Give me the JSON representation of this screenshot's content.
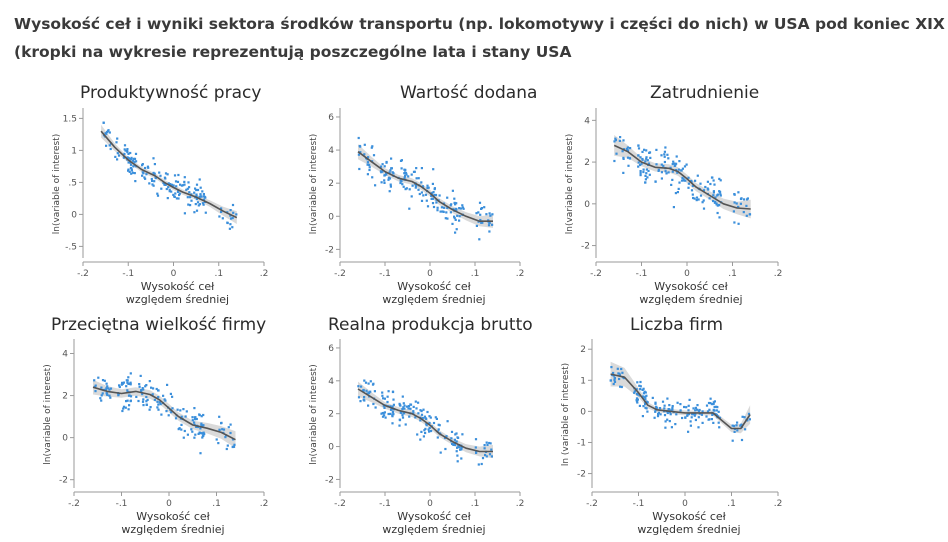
{
  "header": {
    "title_line1": "Wysokość ceł i wyniki sektora środków transportu (np. lokomotywy i części do nich) w USA pod koniec XIX w.",
    "title_line2": "(kropki na wykresie reprezentują poszczególne lata i stany USA"
  },
  "colors": {
    "points": "#3b8fdb",
    "line": "#555555",
    "band": "#d3d3d3",
    "axis": "#9a9a9a",
    "text": "#2b2b2b"
  },
  "chart_data": [
    {
      "type": "scatter",
      "title": "Produktywność pracy",
      "xlabel": "Wysokość ceł względem średniej",
      "ylabel": "ln(variable of interest)",
      "xlim": [
        -0.2,
        0.2
      ],
      "ylim": [
        -0.65,
        1.6
      ],
      "xticks": [
        -0.2,
        -0.1,
        0,
        0.1,
        0.2
      ],
      "xtick_labels": [
        "-.2",
        "-.1",
        "0",
        ".1",
        ".2"
      ],
      "yticks": [
        -0.5,
        0,
        0.5,
        1,
        1.5
      ],
      "ytick_labels": [
        "-.5",
        "0",
        ".5",
        "1",
        "1.5"
      ],
      "x_range": [
        -0.16,
        0.14
      ],
      "fit": {
        "x": [
          -0.16,
          -0.13,
          -0.1,
          -0.07,
          -0.04,
          -0.02,
          0,
          0.02,
          0.05,
          0.08,
          0.11,
          0.14
        ],
        "y": [
          1.3,
          1.05,
          0.85,
          0.7,
          0.6,
          0.5,
          0.42,
          0.35,
          0.27,
          0.17,
          0.05,
          -0.05
        ]
      },
      "band_halfwidth": [
        0.1,
        0.06,
        0.04,
        0.04,
        0.04,
        0.04,
        0.04,
        0.04,
        0.04,
        0.05,
        0.07,
        0.1
      ],
      "spread": 0.22
    },
    {
      "type": "scatter",
      "title": "Wartość dodana",
      "xlabel": "Wysokość ceł względem średniej",
      "ylabel": "ln(variable of interest)",
      "xlim": [
        -0.2,
        0.2
      ],
      "ylim": [
        -2.4,
        6.3
      ],
      "xticks": [
        -0.2,
        -0.1,
        0,
        0.1,
        0.2
      ],
      "xtick_labels": [
        "-.2",
        "-.1",
        "0",
        ".1",
        ".2"
      ],
      "yticks": [
        -2,
        0,
        2,
        4,
        6
      ],
      "ytick_labels": [
        "-2",
        "0",
        "2",
        "4",
        "6"
      ],
      "x_range": [
        -0.16,
        0.14
      ],
      "fit": {
        "x": [
          -0.16,
          -0.13,
          -0.1,
          -0.07,
          -0.04,
          -0.02,
          0,
          0.02,
          0.05,
          0.08,
          0.11,
          0.14
        ],
        "y": [
          3.9,
          3.3,
          2.7,
          2.3,
          2.1,
          1.8,
          1.4,
          0.9,
          0.4,
          0.0,
          -0.3,
          -0.3
        ]
      },
      "band_halfwidth": [
        0.45,
        0.3,
        0.2,
        0.2,
        0.2,
        0.2,
        0.2,
        0.2,
        0.2,
        0.25,
        0.3,
        0.4
      ],
      "spread": 0.9
    },
    {
      "type": "scatter",
      "title": "Zatrudnienie",
      "xlabel": "Wysokość ceł względem średniej",
      "ylabel": "ln(variable of interest)",
      "xlim": [
        -0.2,
        0.2
      ],
      "ylim": [
        -2.5,
        4.4
      ],
      "xticks": [
        -0.2,
        -0.1,
        0,
        0.1,
        0.2
      ],
      "xtick_labels": [
        "-.2",
        "-.1",
        "0",
        ".1",
        ".2"
      ],
      "yticks": [
        -2,
        0,
        2,
        4
      ],
      "ytick_labels": [
        "-2",
        "0",
        "2",
        "4"
      ],
      "x_range": [
        -0.16,
        0.14
      ],
      "fit": {
        "x": [
          -0.16,
          -0.13,
          -0.1,
          -0.07,
          -0.04,
          -0.02,
          0,
          0.02,
          0.05,
          0.08,
          0.11,
          0.14
        ],
        "y": [
          2.8,
          2.5,
          2.0,
          1.75,
          1.7,
          1.55,
          1.2,
          0.8,
          0.4,
          0.0,
          -0.2,
          -0.25
        ]
      },
      "band_halfwidth": [
        0.5,
        0.3,
        0.2,
        0.2,
        0.2,
        0.2,
        0.2,
        0.2,
        0.2,
        0.25,
        0.3,
        0.45
      ],
      "spread": 0.8
    },
    {
      "type": "scatter",
      "title": "Przeciętna wielkość firmy",
      "xlabel": "Wysokość ceł względem średniej",
      "ylabel": "ln(variable of interest)",
      "xlim": [
        -0.2,
        0.2
      ],
      "ylim": [
        -2.3,
        4.5
      ],
      "xticks": [
        -0.2,
        -0.1,
        0,
        0.1,
        0.2
      ],
      "xtick_labels": [
        "-.2",
        "-.1",
        "0",
        ".1",
        ".2"
      ],
      "yticks": [
        -2,
        0,
        2,
        4
      ],
      "ytick_labels": [
        "-2",
        "0",
        "2",
        "4"
      ],
      "x_range": [
        -0.16,
        0.14
      ],
      "fit": {
        "x": [
          -0.16,
          -0.13,
          -0.1,
          -0.07,
          -0.04,
          -0.02,
          0,
          0.02,
          0.05,
          0.08,
          0.11,
          0.14
        ],
        "y": [
          2.4,
          2.2,
          2.1,
          2.2,
          2.05,
          1.8,
          1.4,
          1.0,
          0.6,
          0.45,
          0.25,
          -0.1
        ]
      },
      "band_halfwidth": [
        0.35,
        0.25,
        0.2,
        0.2,
        0.2,
        0.2,
        0.2,
        0.2,
        0.2,
        0.25,
        0.3,
        0.4
      ],
      "spread": 0.8
    },
    {
      "type": "scatter",
      "title": "Realna produkcja brutto",
      "xlabel": "Wysokość ceł względem średniej",
      "ylabel": "ln(variable of interest)",
      "xlim": [
        -0.2,
        0.2
      ],
      "ylim": [
        -2.4,
        6.3
      ],
      "xticks": [
        -0.2,
        -0.1,
        0,
        0.1,
        0.2
      ],
      "xtick_labels": [
        "-.2",
        "-.1",
        "0",
        ".1",
        ".2"
      ],
      "yticks": [
        -2,
        0,
        2,
        4,
        6
      ],
      "ytick_labels": [
        "-2",
        "0",
        "2",
        "4",
        "6"
      ],
      "x_range": [
        -0.16,
        0.14
      ],
      "fit": {
        "x": [
          -0.16,
          -0.13,
          -0.1,
          -0.07,
          -0.04,
          -0.02,
          0,
          0.02,
          0.05,
          0.08,
          0.11,
          0.14
        ],
        "y": [
          3.5,
          3.0,
          2.5,
          2.2,
          2.0,
          1.7,
          1.3,
          0.8,
          0.3,
          -0.1,
          -0.3,
          -0.3
        ]
      },
      "band_halfwidth": [
        0.45,
        0.3,
        0.2,
        0.2,
        0.2,
        0.2,
        0.2,
        0.2,
        0.2,
        0.25,
        0.3,
        0.4
      ],
      "spread": 0.9
    },
    {
      "type": "scatter",
      "title": "Liczba firm",
      "xlabel": "Wysokość ceł względem średniej",
      "ylabel": "ln (variable of interest)",
      "xlim": [
        -0.2,
        0.2
      ],
      "ylim": [
        -2.4,
        2.2
      ],
      "xticks": [
        -0.2,
        -0.1,
        0,
        0.1,
        0.2
      ],
      "xtick_labels": [
        "-.2",
        "-.1",
        "0",
        ".1",
        ".2"
      ],
      "yticks": [
        -2,
        -1,
        0,
        1,
        2
      ],
      "ytick_labels": [
        "-2",
        "-1",
        "0",
        "1",
        "2"
      ],
      "x_range": [
        -0.16,
        0.14
      ],
      "fit": {
        "x": [
          -0.16,
          -0.13,
          -0.1,
          -0.08,
          -0.06,
          -0.03,
          0,
          0.03,
          0.06,
          0.08,
          0.1,
          0.12,
          0.14
        ],
        "y": [
          1.2,
          1.1,
          0.6,
          0.2,
          0.05,
          0.0,
          -0.05,
          -0.05,
          -0.05,
          -0.3,
          -0.55,
          -0.55,
          -0.1
        ]
      },
      "band_halfwidth": [
        0.4,
        0.3,
        0.15,
        0.1,
        0.08,
        0.08,
        0.08,
        0.08,
        0.08,
        0.1,
        0.12,
        0.15,
        0.3
      ],
      "spread": 0.35
    }
  ]
}
